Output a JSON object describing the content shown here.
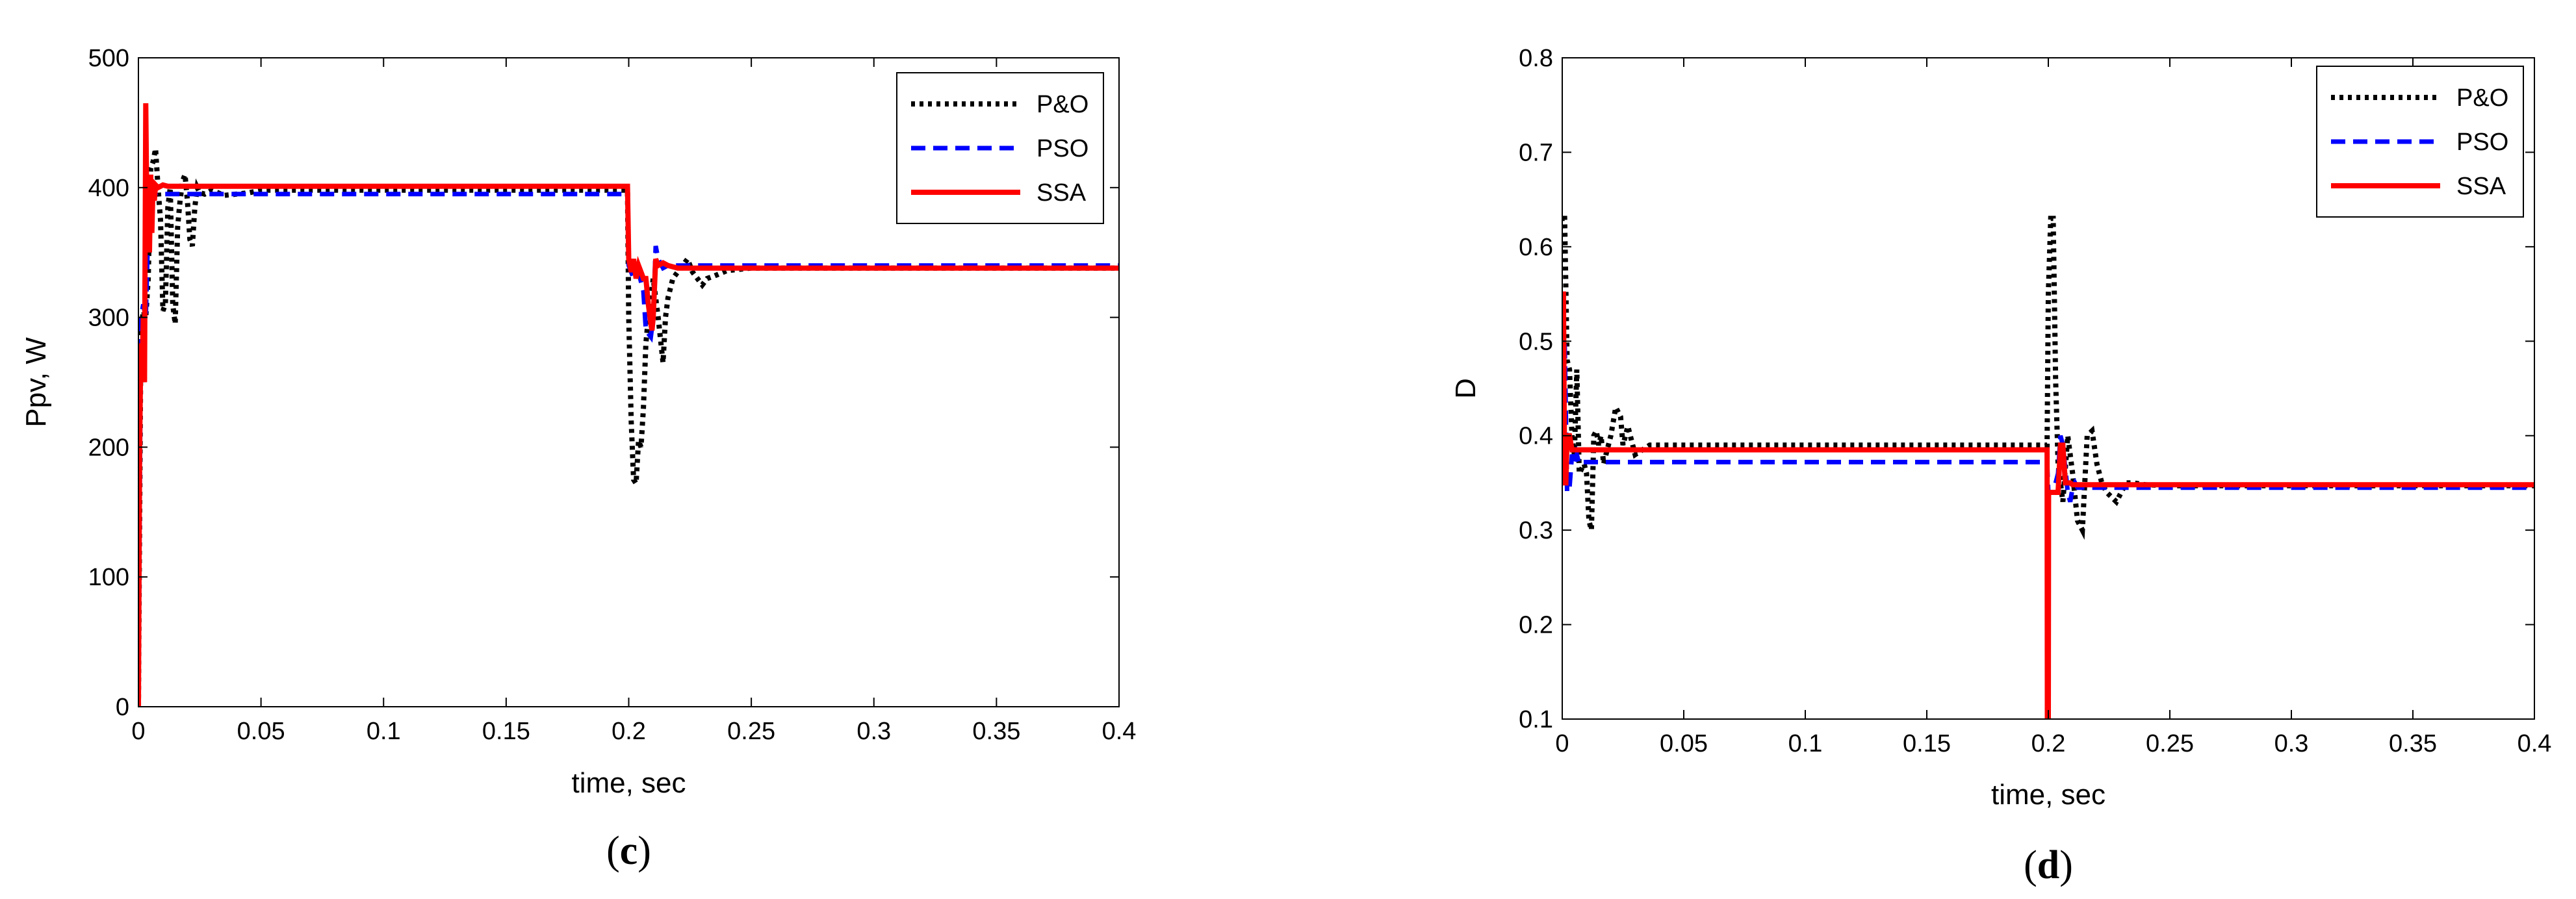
{
  "chart_data": [
    {
      "type": "line",
      "panel_label": {
        "open": "(",
        "letter": "c",
        "close": ")"
      },
      "xlabel": "time, sec",
      "ylabel": "Ppv, W",
      "xlim": [
        0,
        0.4
      ],
      "ylim": [
        0,
        500
      ],
      "xticks": [
        0,
        0.05,
        0.1,
        0.15,
        0.2,
        0.25,
        0.3,
        0.35,
        0.4
      ],
      "xtick_labels": [
        "0",
        "0.05",
        "0.1",
        "0.15",
        "0.2",
        "0.25",
        "0.3",
        "0.35",
        "0.4"
      ],
      "yticks": [
        0,
        100,
        200,
        300,
        400,
        500
      ],
      "ytick_labels": [
        "0",
        "100",
        "200",
        "300",
        "400",
        "500"
      ],
      "grid": false,
      "legend_position": "top-right",
      "series": [
        {
          "name": "P&O",
          "color": "#000000",
          "style": "dotted",
          "x": [
            0,
            0.001,
            0.002,
            0.003,
            0.004,
            0.005,
            0.006,
            0.007,
            0.008,
            0.009,
            0.01,
            0.011,
            0.012,
            0.013,
            0.014,
            0.015,
            0.016,
            0.017,
            0.018,
            0.019,
            0.02,
            0.021,
            0.022,
            0.023,
            0.024,
            0.025,
            0.027,
            0.03,
            0.035,
            0.04,
            0.045,
            0.05,
            0.1,
            0.15,
            0.1995,
            0.2,
            0.201,
            0.202,
            0.203,
            0.204,
            0.205,
            0.206,
            0.207,
            0.208,
            0.21,
            0.212,
            0.214,
            0.215,
            0.216,
            0.218,
            0.22,
            0.222,
            0.224,
            0.226,
            0.228,
            0.23,
            0.232,
            0.235,
            0.24,
            0.25,
            0.3,
            0.35,
            0.4
          ],
          "y": [
            0,
            290,
            305,
            300,
            330,
            415,
            420,
            430,
            400,
            375,
            305,
            310,
            385,
            400,
            310,
            295,
            370,
            390,
            405,
            410,
            390,
            360,
            355,
            385,
            400,
            396,
            395,
            398,
            394,
            395,
            396,
            398,
            398,
            398,
            398,
            300,
            220,
            175,
            172,
            205,
            200,
            230,
            280,
            300,
            330,
            300,
            265,
            300,
            315,
            330,
            335,
            340,
            345,
            335,
            330,
            325,
            330,
            332,
            336,
            338,
            338,
            338,
            338
          ]
        },
        {
          "name": "PSO",
          "color": "#0000ff",
          "style": "dashed",
          "x": [
            0,
            0.001,
            0.002,
            0.003,
            0.004,
            0.005,
            0.006,
            0.008,
            0.01,
            0.015,
            0.02,
            0.05,
            0.1,
            0.15,
            0.1995,
            0.2,
            0.202,
            0.204,
            0.206,
            0.207,
            0.209,
            0.21,
            0.211,
            0.212,
            0.214,
            0.216,
            0.22,
            0.25,
            0.3,
            0.35,
            0.4
          ],
          "y": [
            0,
            300,
            310,
            300,
            370,
            390,
            395,
            396,
            395,
            395,
            395,
            395,
            395,
            395,
            395,
            340,
            330,
            335,
            320,
            290,
            285,
            300,
            355,
            345,
            338,
            340,
            340,
            340,
            340,
            340,
            340
          ]
        },
        {
          "name": "SSA",
          "color": "#ff0000",
          "style": "solid",
          "x": [
            0,
            0.0005,
            0.001,
            0.0015,
            0.002,
            0.0025,
            0.003,
            0.0035,
            0.004,
            0.0045,
            0.005,
            0.0055,
            0.006,
            0.0065,
            0.007,
            0.008,
            0.01,
            0.012,
            0.015,
            0.02,
            0.05,
            0.1,
            0.15,
            0.1995,
            0.2,
            0.201,
            0.202,
            0.203,
            0.204,
            0.205,
            0.206,
            0.207,
            0.208,
            0.209,
            0.2095,
            0.21,
            0.211,
            0.212,
            0.214,
            0.216,
            0.22,
            0.25,
            0.3,
            0.35,
            0.4
          ],
          "y": [
            0,
            200,
            280,
            260,
            300,
            250,
            465,
            370,
            400,
            350,
            410,
            365,
            405,
            390,
            402,
            400,
            402,
            401,
            401,
            401,
            401,
            401,
            401,
            401,
            345,
            335,
            345,
            330,
            340,
            335,
            330,
            330,
            310,
            295,
            290,
            300,
            345,
            340,
            342,
            340,
            338,
            338,
            338,
            338,
            338
          ]
        }
      ]
    },
    {
      "type": "line",
      "panel_label": {
        "open": "(",
        "letter": "d",
        "close": ")"
      },
      "xlabel": "time, sec",
      "ylabel": "D",
      "xlim": [
        0,
        0.4
      ],
      "ylim": [
        0.1,
        0.8
      ],
      "xticks": [
        0,
        0.05,
        0.1,
        0.15,
        0.2,
        0.25,
        0.3,
        0.35,
        0.4
      ],
      "xtick_labels": [
        "0",
        "0.05",
        "0.1",
        "0.15",
        "0.2",
        "0.25",
        "0.3",
        "0.35",
        "0.4"
      ],
      "yticks": [
        0.1,
        0.2,
        0.3,
        0.4,
        0.5,
        0.6,
        0.7,
        0.8
      ],
      "ytick_labels": [
        "0.1",
        "0.2",
        "0.3",
        "0.4",
        "0.5",
        "0.6",
        "0.7",
        "0.8"
      ],
      "grid": false,
      "legend_position": "top-right",
      "series": [
        {
          "name": "P&O",
          "color": "#000000",
          "style": "dotted",
          "x": [
            0,
            0.001,
            0.002,
            0.003,
            0.004,
            0.005,
            0.006,
            0.007,
            0.008,
            0.009,
            0.01,
            0.011,
            0.012,
            0.013,
            0.014,
            0.015,
            0.016,
            0.017,
            0.018,
            0.02,
            0.022,
            0.024,
            0.025,
            0.027,
            0.03,
            0.033,
            0.036,
            0.04,
            0.045,
            0.05,
            0.1,
            0.15,
            0.1995,
            0.2,
            0.201,
            0.202,
            0.203,
            0.204,
            0.206,
            0.208,
            0.21,
            0.212,
            0.214,
            0.216,
            0.218,
            0.22,
            0.222,
            0.224,
            0.228,
            0.232,
            0.235,
            0.24,
            0.25,
            0.3,
            0.35,
            0.4
          ],
          "y": [
            0.63,
            0.63,
            0.48,
            0.47,
            0.4,
            0.38,
            0.47,
            0.36,
            0.365,
            0.37,
            0.36,
            0.31,
            0.3,
            0.4,
            0.405,
            0.39,
            0.4,
            0.37,
            0.38,
            0.4,
            0.43,
            0.42,
            0.39,
            0.41,
            0.38,
            0.385,
            0.39,
            0.39,
            0.39,
            0.39,
            0.39,
            0.39,
            0.39,
            0.55,
            0.63,
            0.63,
            0.46,
            0.37,
            0.33,
            0.4,
            0.36,
            0.31,
            0.3,
            0.4,
            0.405,
            0.37,
            0.35,
            0.34,
            0.33,
            0.35,
            0.35,
            0.348,
            0.347,
            0.347,
            0.347,
            0.347
          ]
        },
        {
          "name": "PSO",
          "color": "#0000ff",
          "style": "dashed",
          "x": [
            0,
            0.001,
            0.002,
            0.003,
            0.004,
            0.005,
            0.006,
            0.007,
            0.008,
            0.01,
            0.015,
            0.02,
            0.05,
            0.1,
            0.15,
            0.1995,
            0.2,
            0.202,
            0.204,
            0.205,
            0.206,
            0.208,
            0.209,
            0.21,
            0.211,
            0.212,
            0.214,
            0.22,
            0.25,
            0.3,
            0.35,
            0.4
          ],
          "y": [
            0.52,
            0.5,
            0.34,
            0.345,
            0.38,
            0.37,
            0.38,
            0.37,
            0.372,
            0.372,
            0.372,
            0.372,
            0.372,
            0.372,
            0.372,
            0.372,
            0.34,
            0.34,
            0.36,
            0.4,
            0.39,
            0.34,
            0.33,
            0.345,
            0.35,
            0.345,
            0.345,
            0.345,
            0.345,
            0.345,
            0.345,
            0.345
          ]
        },
        {
          "name": "SSA",
          "color": "#ff0000",
          "style": "solid",
          "x": [
            0,
            0.0005,
            0.001,
            0.0015,
            0.002,
            0.003,
            0.004,
            0.005,
            0.006,
            0.008,
            0.01,
            0.02,
            0.05,
            0.1,
            0.15,
            0.1995,
            0.1996,
            0.1998,
            0.2,
            0.2001,
            0.201,
            0.202,
            0.203,
            0.204,
            0.205,
            0.206,
            0.207,
            0.208,
            0.209,
            0.21,
            0.22,
            0.25,
            0.3,
            0.35,
            0.4
          ],
          "y": [
            0.55,
            0.55,
            0.35,
            0.35,
            0.4,
            0.4,
            0.385,
            0.385,
            0.385,
            0.385,
            0.385,
            0.385,
            0.385,
            0.385,
            0.385,
            0.385,
            0.1,
            0.1,
            0.1,
            0.34,
            0.34,
            0.34,
            0.34,
            0.34,
            0.39,
            0.39,
            0.35,
            0.35,
            0.35,
            0.348,
            0.348,
            0.348,
            0.348,
            0.348,
            0.348
          ]
        }
      ]
    }
  ]
}
